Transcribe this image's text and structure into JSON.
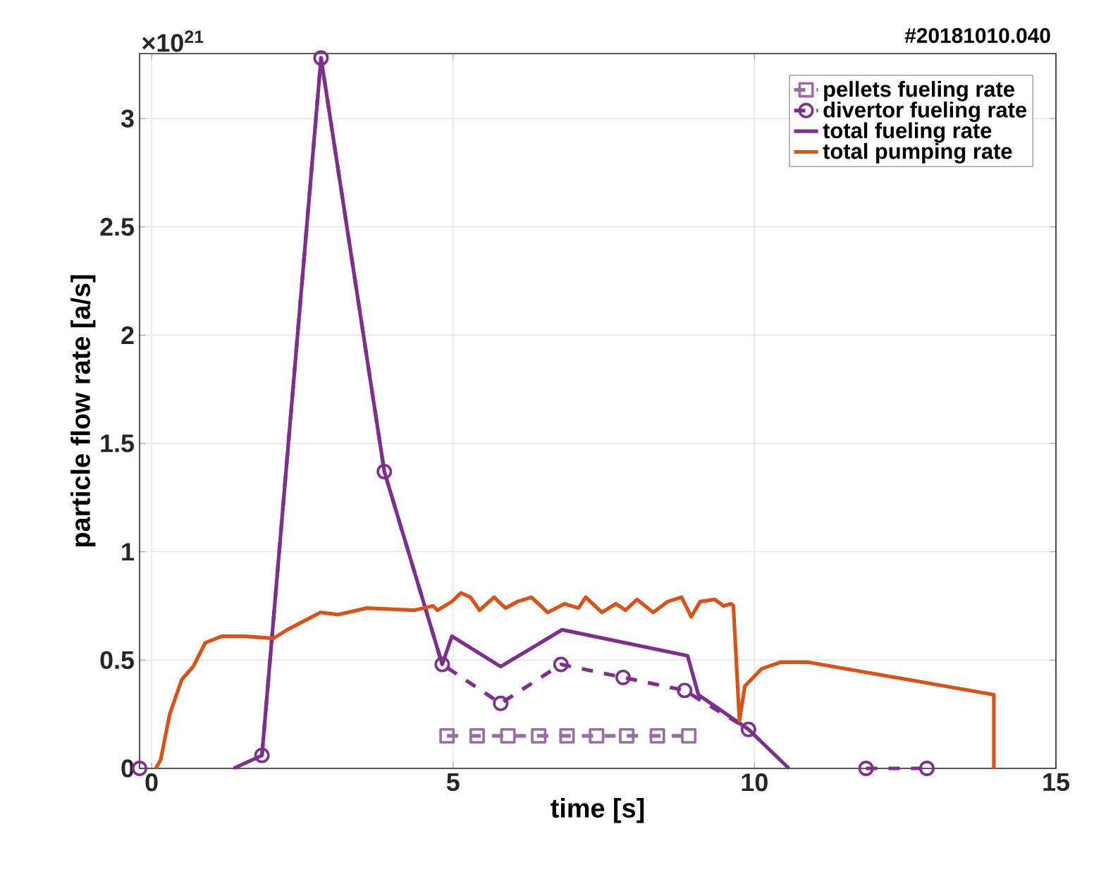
{
  "chart_data": {
    "type": "line",
    "title": "#20181010.040",
    "xlabel": "time [s]",
    "ylabel": "particle flow rate [a/s]",
    "annotations": [
      "×10$^{21}$"
    ],
    "xlim": [
      -0.2,
      15
    ],
    "ylim": [
      0,
      3.3
    ],
    "xticks": [
      0,
      5,
      10,
      15
    ],
    "yticks": [
      0,
      0.5,
      1,
      1.5,
      2,
      2.5,
      3
    ],
    "grid": true,
    "legend": "top right",
    "series": [
      {
        "name": "pellets fueling rate",
        "color": "#9b6ba8",
        "marker": "square",
        "line_style": "dashed",
        "x": [
          4.9,
          5.4,
          5.91,
          6.42,
          6.89,
          7.38,
          7.88,
          8.39,
          8.91
        ],
        "values": [
          0.15,
          0.15,
          0.15,
          0.15,
          0.15,
          0.15,
          0.15,
          0.15,
          0.15
        ]
      },
      {
        "name": "divertor fueling rate",
        "color": "#7e2f8e",
        "marker": "circle",
        "line_style": "dashed",
        "x": [
          -0.2,
          0.8,
          1.83,
          2.81,
          3.86,
          4.82,
          5.79,
          6.79,
          7.82,
          8.84,
          9.9,
          10.9,
          11.85,
          12.86
        ],
        "values": [
          0,
          null,
          0.06,
          3.28,
          1.37,
          0.48,
          0.3,
          0.48,
          0.42,
          0.36,
          0.18,
          null,
          0,
          0
        ]
      },
      {
        "name": "total fueling rate",
        "color": "#7e2f8e",
        "marker": "none",
        "line_style": "solid",
        "x": [
          1.36,
          1.83,
          2.81,
          3.86,
          4.82,
          4.98,
          5.79,
          6.81,
          8.89,
          9.07,
          9.9,
          10.57
        ],
        "values": [
          0,
          0.06,
          3.28,
          1.37,
          0.48,
          0.61,
          0.47,
          0.64,
          0.52,
          0.34,
          0.18,
          0
        ]
      },
      {
        "name": "total pumping rate",
        "color": "#d95319",
        "marker": "none",
        "line_style": "solid",
        "x": [
          0.07,
          0.15,
          0.3,
          0.5,
          0.69,
          0.89,
          1.16,
          1.55,
          2.02,
          2.25,
          2.8,
          3.1,
          3.57,
          4.35,
          4.67,
          4.74,
          4.98,
          5.13,
          5.29,
          5.44,
          5.68,
          5.87,
          6.07,
          6.3,
          6.57,
          6.85,
          7.08,
          7.2,
          7.47,
          7.7,
          7.86,
          8.05,
          8.32,
          8.56,
          8.79,
          8.95,
          9.1,
          9.34,
          9.49,
          9.61,
          9.65,
          9.75,
          9.84,
          10.12,
          10.43,
          10.9,
          13.97,
          13.97
        ],
        "values": [
          0,
          0.04,
          0.25,
          0.41,
          0.47,
          0.58,
          0.61,
          0.61,
          0.6,
          0.64,
          0.72,
          0.71,
          0.74,
          0.73,
          0.75,
          0.73,
          0.77,
          0.81,
          0.79,
          0.73,
          0.79,
          0.74,
          0.77,
          0.79,
          0.72,
          0.76,
          0.74,
          0.79,
          0.72,
          0.76,
          0.73,
          0.78,
          0.72,
          0.77,
          0.79,
          0.7,
          0.77,
          0.78,
          0.75,
          0.76,
          0.75,
          0.22,
          0.38,
          0.46,
          0.49,
          0.49,
          0.34,
          0
        ]
      }
    ]
  }
}
